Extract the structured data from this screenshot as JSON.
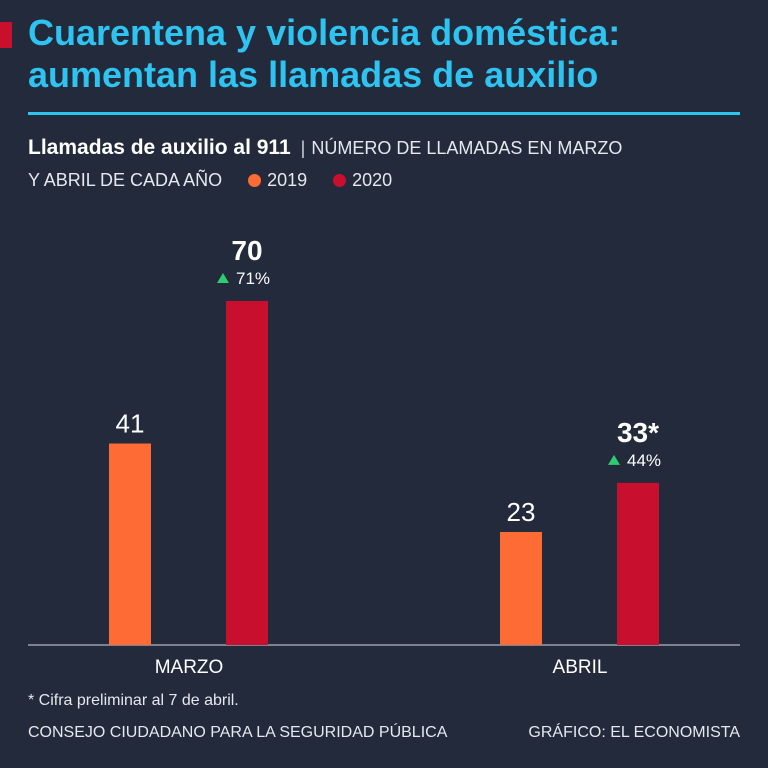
{
  "header": {
    "title_line1": "Cuarentena y violencia doméstica:",
    "title_line2": "aumentan las llamadas de auxilio",
    "accent_color": "#c8102e",
    "title_color": "#2ec4f2"
  },
  "subtitle": {
    "main": "Llamadas de auxilio al 911",
    "separator": "|",
    "desc_line1": "NÚMERO DE LLAMADAS EN MARZO",
    "desc_line2": "Y ABRIL DE CADA AÑO"
  },
  "legend": [
    {
      "label": "2019",
      "color": "#ff6b35"
    },
    {
      "label": "2020",
      "color": "#c8102e"
    }
  ],
  "chart_data": {
    "type": "bar",
    "categories": [
      "MARZO",
      "ABRIL"
    ],
    "series": [
      {
        "name": "2019",
        "values": [
          41,
          23
        ],
        "labels": [
          "41",
          "23"
        ],
        "color": "#ff6b35"
      },
      {
        "name": "2020",
        "values": [
          70,
          33
        ],
        "labels": [
          "70",
          "33*"
        ],
        "color": "#c8102e",
        "changes": [
          "71%",
          "44%"
        ]
      }
    ],
    "change_marker_color": "#2ecc71",
    "ylim": [
      0,
      70
    ],
    "grid": false
  },
  "footer": {
    "footnote": "* Cifra preliminar al 7 de abril.",
    "source": "CONSEJO CIUDADANO PARA LA SEGURIDAD PÚBLICA",
    "credit": "GRÁFICO: EL ECONOMISTA"
  }
}
